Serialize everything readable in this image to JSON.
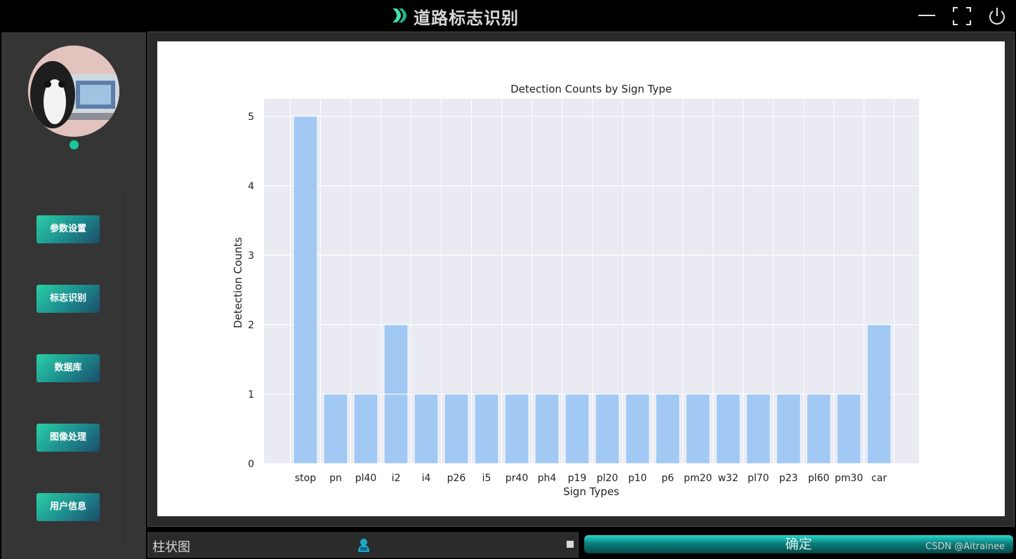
{
  "app": {
    "title": "道路标志识别"
  },
  "window": {
    "minimize_icon": "minimize-icon",
    "maximize_icon": "maximize-icon",
    "power_icon": "power-icon"
  },
  "sidebar": {
    "items": [
      {
        "label": "参数设置"
      },
      {
        "label": "标志识别"
      },
      {
        "label": "数据库"
      },
      {
        "label": "图像处理"
      },
      {
        "label": "用户信息"
      }
    ],
    "status_color": "#19c99a"
  },
  "bottom": {
    "chart_type_select": "柱状图",
    "confirm_label": "确定",
    "watermark": "CSDN @Aitrainee"
  },
  "colors": {
    "accent": "#2bcfa6",
    "bar": "#a1c9f4",
    "plot_bg": "#eaeaf2"
  },
  "chart_data": {
    "type": "bar",
    "title": "Detection Counts by Sign Type",
    "xlabel": "Sign Types",
    "ylabel": "Detection Counts",
    "categories": [
      "stop",
      "pn",
      "pl40",
      "i2",
      "i4",
      "p26",
      "i5",
      "pr40",
      "ph4",
      "p19",
      "pl20",
      "p10",
      "p6",
      "pm20",
      "w32",
      "pl70",
      "p23",
      "pl60",
      "pm30",
      "car"
    ],
    "series": [
      {
        "values": [
          5,
          1,
          1,
          1,
          1,
          1,
          1,
          1,
          1,
          1,
          1,
          1,
          1,
          1,
          1,
          1,
          1,
          1,
          1,
          2
        ]
      },
      {
        "values": [
          0,
          0,
          0,
          1,
          0,
          0,
          0,
          0,
          0,
          0,
          0,
          0,
          0,
          0,
          0,
          0,
          0,
          0,
          0,
          0
        ]
      }
    ],
    "stacked": true,
    "yticks": [
      0,
      1,
      2,
      3,
      4,
      5
    ],
    "ylim": [
      0,
      5.25
    ],
    "grid": true
  }
}
